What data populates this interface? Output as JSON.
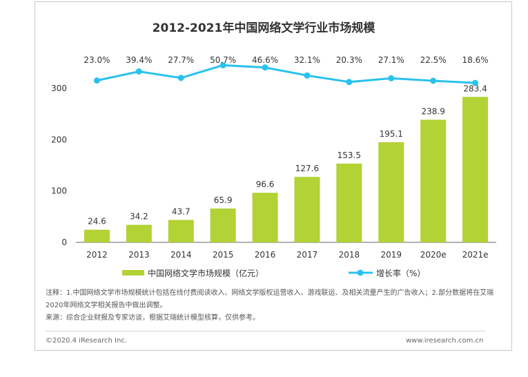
{
  "chart_data": {
    "type": "bar",
    "title": "2012-2021年中国网络文学行业市场规模",
    "categories": [
      "2012",
      "2013",
      "2014",
      "2015",
      "2016",
      "2017",
      "2018",
      "2019",
      "2020e",
      "2021e"
    ],
    "series": [
      {
        "name": "中国网络文学市场规模（亿元）",
        "type": "bar",
        "color": "#b2d235",
        "values": [
          24.6,
          34.2,
          43.7,
          65.9,
          96.6,
          127.6,
          153.5,
          195.1,
          238.9,
          283.4
        ],
        "labels": [
          "24.6",
          "34.2",
          "43.7",
          "65.9",
          "96.6",
          "127.6",
          "153.5",
          "195.1",
          "238.9",
          "283.4"
        ]
      },
      {
        "name": "增长率（%）",
        "type": "line",
        "color": "#29c2ee",
        "values": [
          23.0,
          39.4,
          27.7,
          50.7,
          46.6,
          32.1,
          20.3,
          27.1,
          22.5,
          18.6
        ],
        "labels": [
          "23.0%",
          "39.4%",
          "27.7%",
          "50.7%",
          "46.6%",
          "32.1%",
          "20.3%",
          "27.1%",
          "22.5%",
          "18.6%"
        ]
      }
    ],
    "y_ticks": [
      "0",
      "100",
      "200",
      "300"
    ],
    "ylim": [
      0,
      300
    ],
    "grid": false,
    "legend_position": "bottom"
  },
  "notes": {
    "line1": "注释：1.中国网络文学市场规模统计包括在线付费阅读收入、网络文学版权运营收入、游戏联运、及相关流量产生的广告收入；2.部分数据将在艾瑞",
    "line2": "2020年网络文学相关报告中做出调整。",
    "line3": "来源：综合企业财报及专家访谈，根据艾瑞统计模型核算，仅供参考。"
  },
  "footer": {
    "copyright": "©2020.4 iResearch Inc.",
    "website": "www.iresearch.com.cn"
  }
}
